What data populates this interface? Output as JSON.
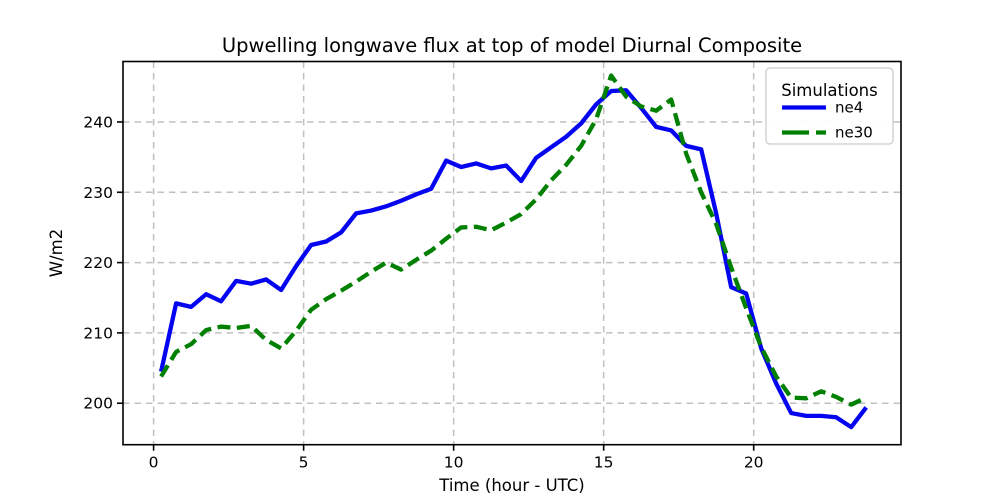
{
  "chart_data": {
    "type": "line",
    "title": "Upwelling longwave flux at top of model Diurnal Composite",
    "xlabel": "Time (hour - UTC)",
    "ylabel": "W/m2",
    "xlim": [
      -1.02,
      24.91
    ],
    "ylim": [
      194.1,
      248.6
    ],
    "xticks": [
      0,
      5,
      10,
      15,
      20
    ],
    "yticks": [
      200,
      210,
      220,
      230,
      240
    ],
    "grid": true,
    "grid_style": "dashed",
    "legend": {
      "title": "Simulations",
      "position": "upper right"
    },
    "x": [
      0.25,
      0.75,
      1.25,
      1.75,
      2.25,
      2.75,
      3.25,
      3.75,
      4.25,
      4.75,
      5.25,
      5.75,
      6.25,
      6.75,
      7.25,
      7.75,
      8.25,
      8.75,
      9.25,
      9.75,
      10.25,
      10.75,
      11.25,
      11.75,
      12.25,
      12.75,
      13.25,
      13.75,
      14.25,
      14.75,
      15.25,
      15.75,
      16.25,
      16.75,
      17.25,
      17.75,
      18.25,
      18.75,
      19.25,
      19.75,
      20.25,
      20.75,
      21.25,
      21.75,
      22.25,
      22.75,
      23.25,
      23.75
    ],
    "series": [
      {
        "name": "ne4",
        "color": "#0404f0",
        "style": "solid",
        "values": [
          204.5,
          214.2,
          213.7,
          215.5,
          214.5,
          217.4,
          217.0,
          217.6,
          216.1,
          219.5,
          222.5,
          223.0,
          224.3,
          227.0,
          227.4,
          228.0,
          228.8,
          229.7,
          230.5,
          234.5,
          233.6,
          234.1,
          233.4,
          233.8,
          231.6,
          234.9,
          236.4,
          237.9,
          239.8,
          242.5,
          244.4,
          244.5,
          242.0,
          239.3,
          238.8,
          236.6,
          236.1,
          227.0,
          216.5,
          215.6,
          207.8,
          202.8,
          198.6,
          198.2,
          198.2,
          198.0,
          196.6,
          199.4
        ]
      },
      {
        "name": "ne30",
        "color": "#008000",
        "style": "dashed",
        "values": [
          203.8,
          207.3,
          208.4,
          210.4,
          210.9,
          210.7,
          211.0,
          209.0,
          207.8,
          210.3,
          213.3,
          214.8,
          216.0,
          217.3,
          218.7,
          220.0,
          219.0,
          220.4,
          221.7,
          223.4,
          225.0,
          225.1,
          224.6,
          225.7,
          226.9,
          229.0,
          231.7,
          233.9,
          236.6,
          240.4,
          246.6,
          243.6,
          242.2,
          241.6,
          243.2,
          235.5,
          230.0,
          225.5,
          219.3,
          213.5,
          208.0,
          203.8,
          200.8,
          200.7,
          201.7,
          200.9,
          199.8,
          200.8
        ]
      }
    ]
  }
}
